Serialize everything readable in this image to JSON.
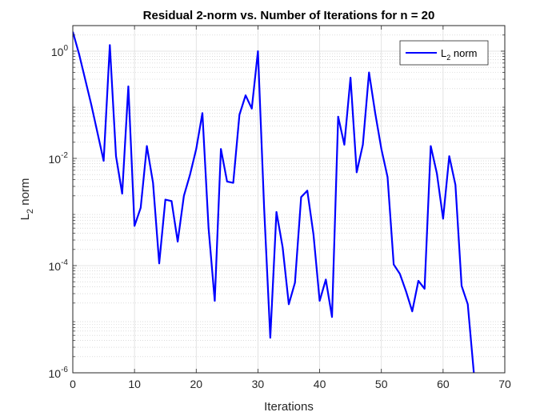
{
  "chart_data": {
    "type": "line",
    "title": "Residual 2-norm vs. Number of Iterations for n = 20",
    "xlabel": "Iterations",
    "ylabel": {
      "base": "L",
      "sub": "2",
      "rest": " norm"
    },
    "xlim": [
      0,
      70
    ],
    "ylim": [
      1e-06,
      3
    ],
    "yscale": "log",
    "grid": true,
    "minor_grid": true,
    "legend_placement": "top-right",
    "x_ticks": [
      "0",
      "10",
      "20",
      "30",
      "40",
      "50",
      "60",
      "70"
    ],
    "x_tick_values": [
      0,
      10,
      20,
      30,
      40,
      50,
      60,
      70
    ],
    "y_ticks": [
      {
        "value": 1e-06,
        "base": "10",
        "exp": "-6"
      },
      {
        "value": 0.0001,
        "base": "10",
        "exp": "-4"
      },
      {
        "value": 0.01,
        "base": "10",
        "exp": "-2"
      },
      {
        "value": 1,
        "base": "10",
        "exp": "0"
      }
    ],
    "series": [
      {
        "name": {
          "base": "L",
          "sub": "2",
          "rest": " norm"
        },
        "color": "#0000ff",
        "x": [
          0,
          1,
          2,
          3,
          4,
          5,
          6,
          7,
          8,
          9,
          10,
          11,
          12,
          13,
          14,
          15,
          16,
          17,
          18,
          19,
          20,
          21,
          22,
          23,
          24,
          25,
          26,
          27,
          28,
          29,
          30,
          31,
          32,
          33,
          34,
          35,
          36,
          37,
          38,
          39,
          40,
          41,
          42,
          43,
          44,
          45,
          46,
          47,
          48,
          49,
          50,
          51,
          52,
          53,
          54,
          55,
          56,
          57,
          58,
          59,
          60,
          61,
          62,
          63,
          64,
          65
        ],
        "values": [
          2.3,
          0.9,
          0.3,
          0.1,
          0.03,
          0.009,
          1.3,
          0.011,
          0.0022,
          0.22,
          0.00055,
          0.0012,
          0.017,
          0.0035,
          0.00011,
          0.0017,
          0.0016,
          0.00028,
          0.002,
          0.005,
          0.015,
          0.07,
          0.0005,
          2.2e-05,
          0.015,
          0.0037,
          0.0035,
          0.065,
          0.15,
          0.085,
          1.0,
          0.0012,
          4.5e-06,
          0.001,
          0.00022,
          1.9e-05,
          4.8e-05,
          0.0019,
          0.0025,
          0.00038,
          2.2e-05,
          5.5e-05,
          1.1e-05,
          0.06,
          0.018,
          0.32,
          0.0055,
          0.018,
          0.4,
          0.07,
          0.015,
          0.0045,
          0.000105,
          7e-05,
          3.3e-05,
          1.4e-05,
          5.2e-05,
          3.7e-05,
          0.017,
          0.0052,
          0.00075,
          0.011,
          0.0032,
          4.2e-05,
          1.9e-05,
          9.5e-07
        ]
      }
    ]
  }
}
